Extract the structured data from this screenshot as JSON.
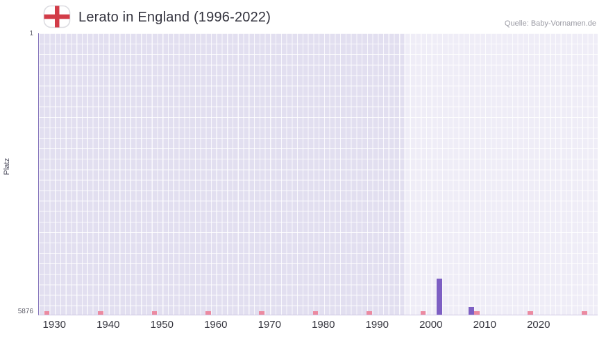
{
  "header": {
    "title": "Lerato in England (1996-2022)",
    "source": "Quelle: Baby-Vornamen.de"
  },
  "chart_data": {
    "type": "bar",
    "title": "Lerato in England (1996-2022)",
    "ylabel": "Platz",
    "y_axis": {
      "min": 1,
      "max": 5876,
      "top_label": "1",
      "bottom_label": "5876",
      "inverted": true
    },
    "x_axis": {
      "min": 1927,
      "max": 2031,
      "ticks": [
        "1930",
        "1940",
        "1950",
        "1960",
        "1970",
        "1980",
        "1990",
        "2000",
        "2010",
        "2020"
      ]
    },
    "highlight_period": {
      "start": 1995,
      "end": 2031
    },
    "bars": [
      {
        "year": 2001,
        "rank": 5130
      },
      {
        "year": 2007,
        "rank": 5720
      }
    ],
    "decade_marks": {
      "years": [
        1928,
        1938,
        1948,
        1958,
        1968,
        1978,
        1988,
        1998,
        2008,
        2018,
        2028
      ],
      "rank": 5800
    },
    "colors": {
      "bar": "#7d5fc3",
      "decade_mark": "#ec8aa0",
      "plot_bg": "#e2dff0",
      "grid_line": "#ffffff",
      "axis_line": "#8575bb",
      "highlight": "rgba(255,255,255,0.45)",
      "flag_cross": "#d23c48",
      "flag_ring": "#dcdce1"
    }
  }
}
